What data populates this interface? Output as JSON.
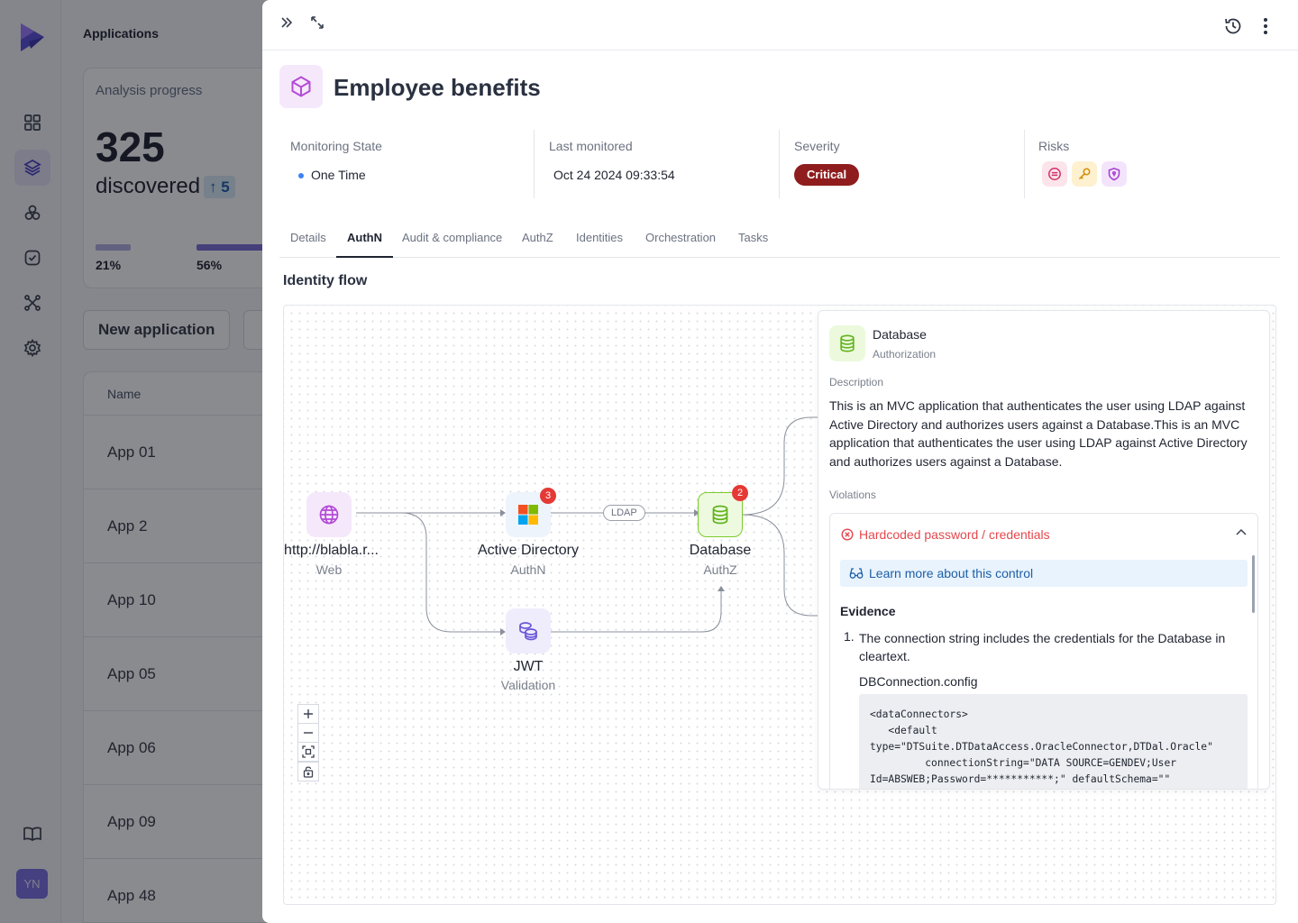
{
  "background": {
    "page_title": "Applications",
    "analysis_card": {
      "label": "Analysis progress",
      "count": "325",
      "count_label": "discovered",
      "delta": "5",
      "progress": [
        {
          "label": "21%",
          "value": 0.21,
          "color": "#b3aee0"
        },
        {
          "label": "56%",
          "value": 0.56,
          "color": "#7c6fd6"
        }
      ]
    },
    "new_app_button": "New application",
    "table": {
      "column_name": "Name",
      "rows": [
        "App 01",
        "App 2",
        "App 10",
        "App 05",
        "App 06",
        "App 09",
        "App 48"
      ]
    },
    "user_initials": "YN",
    "rail_icons": [
      "dashboard-icon",
      "layers-icon",
      "components-icon",
      "checklist-icon",
      "integrations-icon",
      "settings-icon",
      "docs-icon"
    ]
  },
  "drawer": {
    "title": "Employee benefits",
    "meta": {
      "monitoring_label": "Monitoring State",
      "monitoring_value": "One Time",
      "last_label": "Last monitored",
      "last_value": "Oct 24 2024 09:33:54",
      "severity_label": "Severity",
      "severity_value": "Critical",
      "risks_label": "Risks",
      "risk_icons": [
        "block-icon",
        "key-icon",
        "shield-icon"
      ]
    },
    "tabs": [
      "Details",
      "AuthN",
      "Audit & compliance",
      "AuthZ",
      "Identities",
      "Orchestration",
      "Tasks"
    ],
    "active_tab": "AuthN",
    "section_title": "Identity flow",
    "flow": {
      "web": {
        "label": "http://blabla.r...",
        "sub": "Web"
      },
      "ad": {
        "label": "Active Directory",
        "sub": "AuthN",
        "badge": "3"
      },
      "db": {
        "label": "Database",
        "sub": "AuthZ",
        "badge": "2"
      },
      "jwt": {
        "label": "JWT",
        "sub": "Validation"
      },
      "edge_label": "LDAP"
    },
    "panel": {
      "title": "Database",
      "subtitle": "Authorization",
      "description_label": "Description",
      "description": "This is an MVC application that authenticates the user using LDAP against Active Directory and authorizes users against a Database.This is an MVC application that authenticates the user using LDAP against Active Directory and authorizes users against a Database.",
      "violations_label": "Violations",
      "violation_title": "Hardcoded password / credentials",
      "learn_more": "Learn more about this control",
      "evidence_title": "Evidence",
      "evidence_number": "1.",
      "evidence_text": "The connection string includes the credentials for the Database in cleartext.",
      "evidence_file": "DBConnection.config",
      "code": "<dataConnectors>\n   <default\ntype=\"DTSuite.DTDataAccess.OracleConnector,DTDal.Oracle\"\n         connectionString=\"DATA SOURCE=GENDEV;User\nId=ABSWEB;Password=***********;\" defaultSchema=\"\""
    }
  }
}
